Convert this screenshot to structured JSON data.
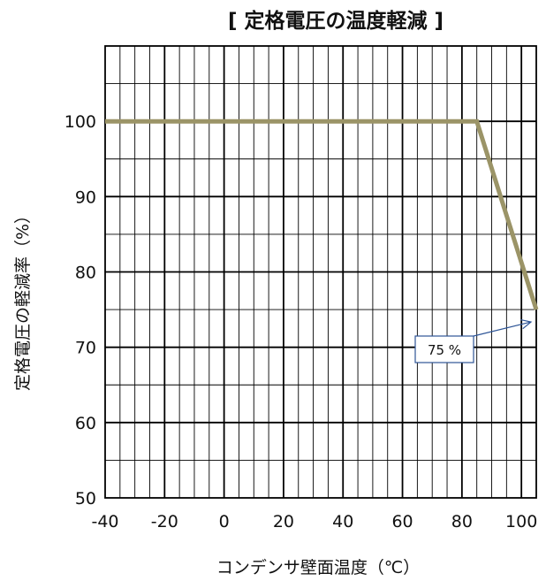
{
  "chart_data": {
    "type": "line",
    "title": "[ 定格電圧の温度軽減 ]",
    "xlabel": "コンデンサ壁面温度（℃）",
    "ylabel": "定格電圧の軽減率（%）",
    "xlim": [
      -40,
      105
    ],
    "ylim": [
      50,
      110
    ],
    "xticks": [
      -40,
      -20,
      0,
      20,
      40,
      60,
      80,
      100
    ],
    "yticks": [
      50,
      60,
      70,
      80,
      90,
      100
    ],
    "grid": true,
    "series": [
      {
        "x": [
          -40,
          85,
          105
        ],
        "y": [
          100,
          100,
          75
        ]
      }
    ],
    "annotations": [
      {
        "text": "75 %",
        "x": 105,
        "y": 75
      }
    ],
    "colors": {
      "line": "#9b9467",
      "grid": "#000000",
      "annotation_arrow": "#2e5597",
      "annotation_border": "#2e5597"
    }
  }
}
